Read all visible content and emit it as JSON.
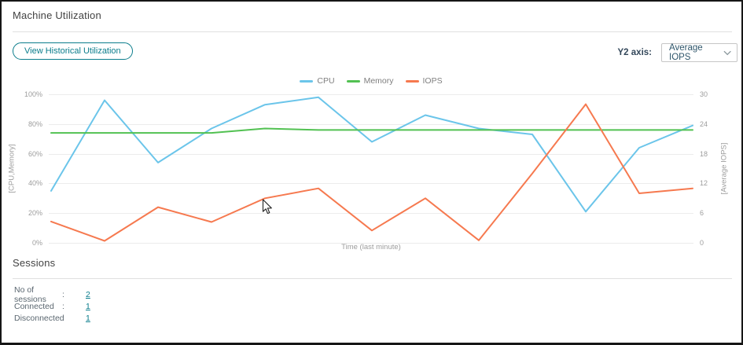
{
  "header": {
    "title": "Machine Utilization"
  },
  "toolbar": {
    "view_historical_label": "View Historical Utilization",
    "y2_axis_label": "Y2 axis:",
    "y2_axis_value": "Average IOPS"
  },
  "chart_data": {
    "type": "line",
    "title": "",
    "xlabel": "Time (last minute)",
    "x_count": 13,
    "grid": "horizontal",
    "legend_position": "top-center",
    "y1_axis": {
      "label": "[CPU,Memory]",
      "min": 0,
      "max": 100,
      "ticks": [
        "100%",
        "80%",
        "60%",
        "40%",
        "20%",
        "0%"
      ]
    },
    "y2_axis": {
      "label": "[Average IOPS]",
      "min": 0,
      "max": 30,
      "ticks": [
        "30",
        "24",
        "18",
        "12",
        "6",
        "0"
      ]
    },
    "series": [
      {
        "name": "CPU",
        "axis": "y1",
        "color": "#6BC5EA",
        "values": [
          35,
          96,
          54,
          77,
          93,
          98,
          68,
          86,
          77,
          73,
          21,
          64,
          79
        ]
      },
      {
        "name": "Memory",
        "axis": "y1",
        "color": "#52C152",
        "values": [
          74,
          74,
          74,
          74,
          77,
          76,
          76,
          76,
          76,
          76,
          76,
          76,
          76
        ]
      },
      {
        "name": "IOPS",
        "axis": "y2",
        "color": "#F6794F",
        "values": [
          4.3,
          0.4,
          7.2,
          4.2,
          9,
          11,
          2.5,
          9,
          0.5,
          14,
          28,
          10,
          11
        ]
      }
    ]
  },
  "sessions": {
    "title": "Sessions",
    "rows": [
      {
        "label": "No of sessions",
        "separator": ":",
        "value": "2"
      },
      {
        "label": "Connected",
        "separator": ":",
        "value": "1"
      },
      {
        "label": "Disconnected",
        "separator": ":",
        "value": "1"
      }
    ]
  },
  "ui_colors": {
    "accent_teal": "#0B7D8C",
    "label_dark": "#33475A",
    "grid_gray": "#ECECEC",
    "tick_gray": "#9D9D9D"
  }
}
